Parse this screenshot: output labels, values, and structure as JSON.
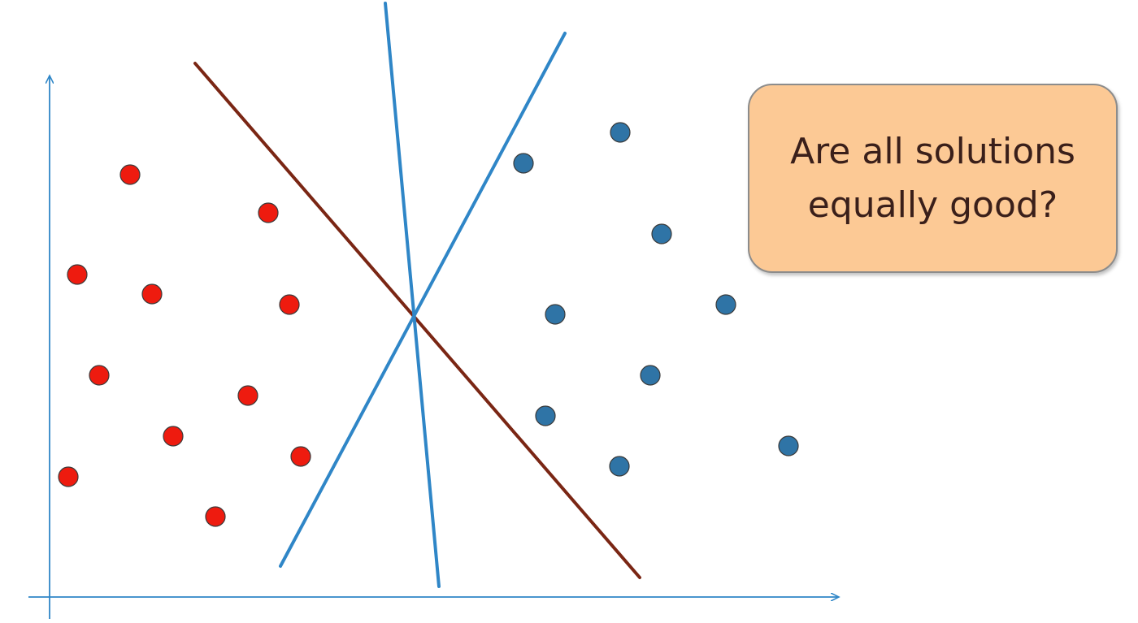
{
  "callout": {
    "text": "Are all solutions\nequally good?"
  },
  "colors": {
    "axis": "#2f86c7",
    "red_points": "#ee1b0f",
    "blue_points": "#2f74a6",
    "blue_lines": "#2f86c7",
    "brown_line": "#7a2614",
    "callout_fill": "#fcc995",
    "callout_text": "#3a1f1a"
  },
  "red_points": [
    [
      160,
      215
    ],
    [
      330,
      262
    ],
    [
      95,
      338
    ],
    [
      187,
      362
    ],
    [
      356,
      375
    ],
    [
      122,
      462
    ],
    [
      305,
      487
    ],
    [
      213,
      537
    ],
    [
      370,
      562
    ],
    [
      84,
      587
    ],
    [
      265,
      636
    ]
  ],
  "blue_points": [
    [
      763,
      163
    ],
    [
      644,
      201
    ],
    [
      814,
      288
    ],
    [
      893,
      375
    ],
    [
      683,
      387
    ],
    [
      800,
      462
    ],
    [
      671,
      512
    ],
    [
      970,
      549
    ],
    [
      762,
      574
    ]
  ],
  "separating_lines": [
    {
      "name": "brown",
      "color": "#7a2614",
      "from": [
        240,
        78
      ],
      "to": [
        787,
        711
      ]
    },
    {
      "name": "blue-near-vertical",
      "color": "#2f86c7",
      "from": [
        474,
        4
      ],
      "to": [
        540,
        722
      ]
    },
    {
      "name": "blue-diagonal",
      "color": "#2f86c7",
      "from": [
        695,
        41
      ],
      "to": [
        345,
        697
      ]
    }
  ]
}
